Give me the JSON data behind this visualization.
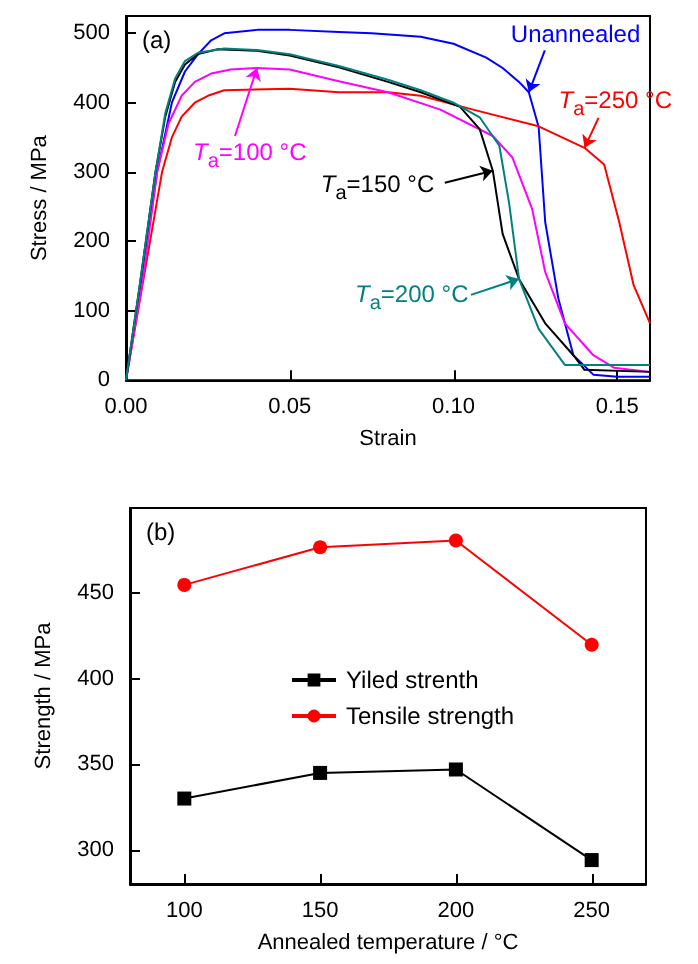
{
  "chart_data": [
    {
      "type": "line",
      "xlabel": "Strain",
      "ylabel": "Stress / MPa",
      "xlim": [
        0,
        0.16
      ],
      "ylim": [
        0,
        525
      ],
      "xticks": [
        {
          "value": 0,
          "label": "0.00"
        },
        0.05,
        {
          "value": 0.1,
          "label": "0.10"
        },
        0.15
      ],
      "yticks": [
        0,
        100,
        200,
        300,
        400,
        500
      ],
      "marker": "none",
      "legend": false,
      "grid": false,
      "series": [
        {
          "color": "#0000ff",
          "x": [
            0,
            0.004,
            0.0095,
            0.014,
            0.018,
            0.022,
            0.026,
            0.03,
            0.04,
            0.05,
            0.065,
            0.075,
            0.09,
            0.1,
            0.11,
            0.115,
            0.12,
            0.123,
            0.126,
            0.128,
            0.132,
            0.1366,
            0.1427,
            0.15,
            0.16
          ],
          "values": [
            0,
            120,
            300,
            400,
            445,
            470,
            490,
            500,
            505,
            505,
            502,
            500,
            495,
            485,
            465,
            450,
            430,
            415,
            365,
            228,
            118,
            36,
            8,
            5,
            5
          ]
        },
        {
          "color": "#ff0000",
          "x": [
            0,
            0.011,
            0.014,
            0.017,
            0.021,
            0.025,
            0.03,
            0.05,
            0.065,
            0.08,
            0.09,
            0.106,
            0.126,
            0.14,
            0.146,
            0.1506,
            0.155,
            0.16
          ],
          "values": [
            0,
            300,
            350,
            380,
            400,
            410,
            418,
            420,
            415,
            415,
            410,
            390,
            366,
            335,
            311,
            228,
            137,
            82
          ]
        },
        {
          "color": "#ff00ff",
          "x": [
            0,
            0.005,
            0.0095,
            0.013,
            0.017,
            0.021,
            0.026,
            0.032,
            0.04,
            0.05,
            0.065,
            0.08,
            0.096,
            0.112,
            0.118,
            0.124,
            0.128,
            0.134,
            0.1427,
            0.149,
            0.16
          ],
          "values": [
            0,
            140,
            300,
            370,
            410,
            430,
            442,
            448,
            450,
            448,
            431,
            415,
            390,
            352,
            321,
            247,
            156,
            82,
            36,
            18,
            12
          ]
        },
        {
          "color": "#000000",
          "x": [
            0,
            0.004,
            0.009,
            0.012,
            0.015,
            0.018,
            0.022,
            0.028,
            0.04,
            0.05,
            0.065,
            0.08,
            0.09,
            0.102,
            0.108,
            0.112,
            0.115,
            0.12,
            0.128,
            0.1366,
            0.14,
            0.16
          ],
          "values": [
            0,
            130,
            300,
            380,
            430,
            455,
            470,
            477,
            475,
            468,
            451,
            430,
            415,
            394,
            362,
            302,
            211,
            146,
            82,
            36,
            15,
            12
          ]
        },
        {
          "color": "#008080",
          "x": [
            0,
            0.004,
            0.009,
            0.012,
            0.015,
            0.018,
            0.022,
            0.03,
            0.04,
            0.05,
            0.065,
            0.08,
            0.09,
            0.1,
            0.108,
            0.114,
            0.117,
            0.12,
            0.126,
            0.134,
            0.16
          ],
          "values": [
            0,
            130,
            300,
            385,
            435,
            460,
            472,
            478,
            476,
            470,
            453,
            433,
            418,
            400,
            379,
            338,
            255,
            146,
            74,
            22,
            22
          ]
        }
      ],
      "annotations": [
        "(a)",
        {
          "text": "Unannealed",
          "x": 0.123,
          "y": 415
        },
        {
          "text": "T$_{a}$=250 °C",
          "x": 0.14,
          "y": 335
        },
        {
          "text": "T$_{a}$=100 °C",
          "x": 0.04,
          "y": 450
        },
        {
          "text": "T$_{a}$=150 °C",
          "x": 0.112,
          "y": 302
        },
        {
          "text": "T$_{a}$=200 °C",
          "x": 0.12,
          "y": 146
        }
      ]
    },
    {
      "type": "line",
      "xlabel": "Annealed temperature / °C",
      "ylabel": "Strength / MPa",
      "xlim": [
        80,
        270
      ],
      "ylim": [
        280,
        500
      ],
      "xticks": [
        100,
        150,
        200,
        250
      ],
      "yticks": [
        300,
        350,
        400,
        450
      ],
      "legend": "left",
      "grid": false,
      "x": [
        100,
        150,
        200,
        250
      ],
      "series": [
        {
          "name": "Yiled strenth",
          "color": "#000000",
          "marker": "square",
          "values": [
            330,
            345,
            347,
            294
          ]
        },
        {
          "name": "Tensile strength",
          "color": "#ff0000",
          "marker": "circle",
          "values": [
            455,
            477,
            481,
            420
          ]
        }
      ],
      "annotations": [
        "(b)"
      ]
    }
  ]
}
